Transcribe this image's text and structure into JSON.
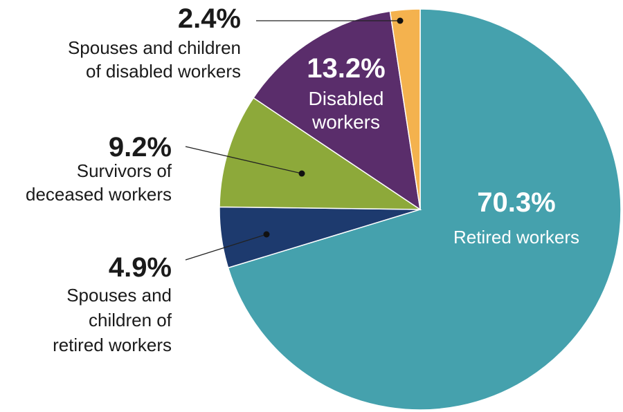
{
  "chart_data": {
    "type": "pie",
    "slices": [
      {
        "value": 70.3,
        "percent_label": "70.3%",
        "label_lines": [
          "Retired workers"
        ],
        "color": "#45a1ad",
        "label_placement": "inside"
      },
      {
        "value": 4.9,
        "percent_label": "4.9%",
        "label_lines": [
          "Spouses and",
          "children of",
          "retired workers"
        ],
        "color": "#1d3a6e",
        "label_placement": "outside-left"
      },
      {
        "value": 9.2,
        "percent_label": "9.2%",
        "label_lines": [
          "Survivors of",
          "deceased workers"
        ],
        "color": "#8da93a",
        "label_placement": "outside-left"
      },
      {
        "value": 13.2,
        "percent_label": "13.2%",
        "label_lines": [
          "Disabled",
          "workers"
        ],
        "color": "#5a2d6b",
        "label_placement": "inside"
      },
      {
        "value": 2.4,
        "percent_label": "2.4%",
        "label_lines": [
          "Spouses and children",
          "of disabled workers"
        ],
        "color": "#f4b24e",
        "label_placement": "outside-left"
      }
    ]
  }
}
